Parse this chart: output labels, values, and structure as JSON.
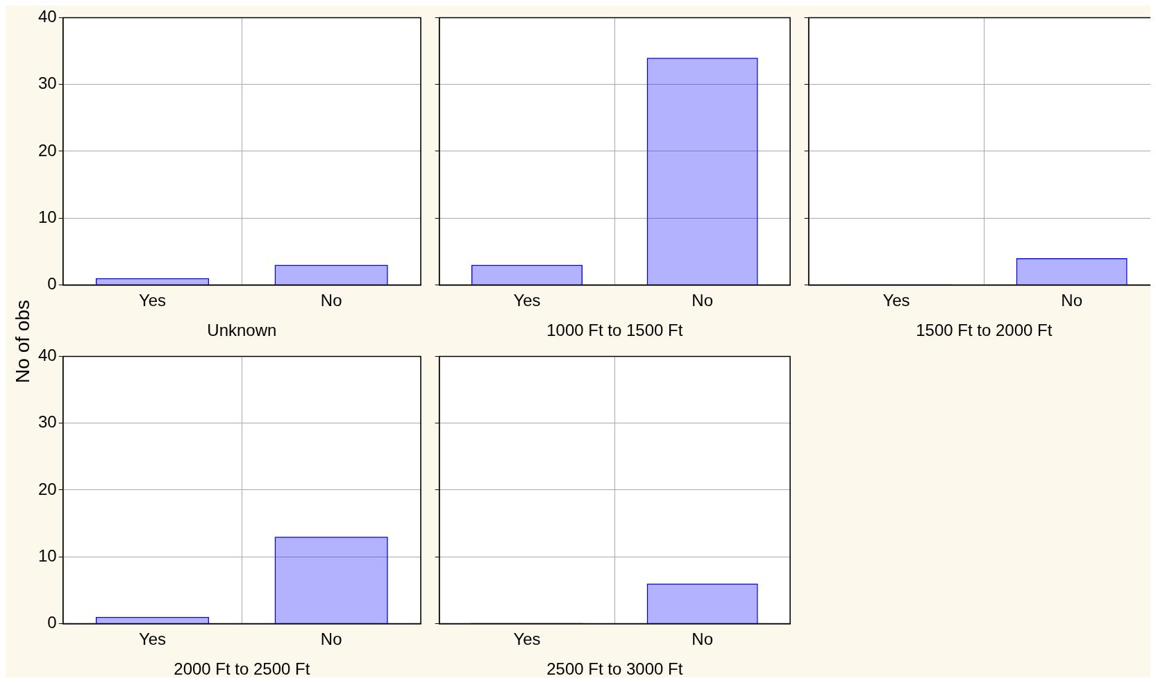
{
  "chart_data": [
    {
      "type": "bar",
      "xlabel": "Unknown",
      "ylabel": "No of obs",
      "categories": [
        "Yes",
        "No"
      ],
      "values": [
        1,
        3
      ],
      "color": "#0000ff",
      "ylim": [
        0,
        40
      ],
      "yticks": [
        0,
        10,
        20,
        30,
        40
      ],
      "grid": true
    },
    {
      "type": "bar",
      "xlabel": "1000 Ft to 1500 Ft",
      "categories": [
        "Yes",
        "No"
      ],
      "values": [
        3,
        34
      ],
      "color": "#0000ff",
      "ylim": [
        0,
        40
      ],
      "yticks": [
        0,
        10,
        20,
        30,
        40
      ],
      "grid": true,
      "tick_labels": "x"
    },
    {
      "type": "bar",
      "xlabel": "1500 Ft to 2000 Ft",
      "categories": [
        "Yes",
        "No"
      ],
      "values": [
        0,
        4
      ],
      "color": "#0000ff",
      "ylim": [
        0,
        40
      ],
      "yticks": [
        0,
        10,
        20,
        30,
        40
      ],
      "grid": true,
      "tick_labels": "x"
    },
    {
      "type": "bar",
      "xlabel": "2000 Ft to 2500 Ft",
      "categories": [
        "Yes",
        "No"
      ],
      "values": [
        1,
        13
      ],
      "color": "#0000ff",
      "ylim": [
        0,
        40
      ],
      "yticks": [
        0,
        10,
        20,
        30,
        40
      ],
      "grid": true
    },
    {
      "type": "bar",
      "xlabel": "2500 Ft to 3000 Ft",
      "categories": [
        "Yes",
        "No"
      ],
      "values": [
        0,
        6
      ],
      "color": "#0000ff",
      "ylim": [
        0,
        40
      ],
      "yticks": [
        0,
        10,
        20,
        30,
        40
      ],
      "grid": true,
      "tick_labels": "x"
    }
  ]
}
